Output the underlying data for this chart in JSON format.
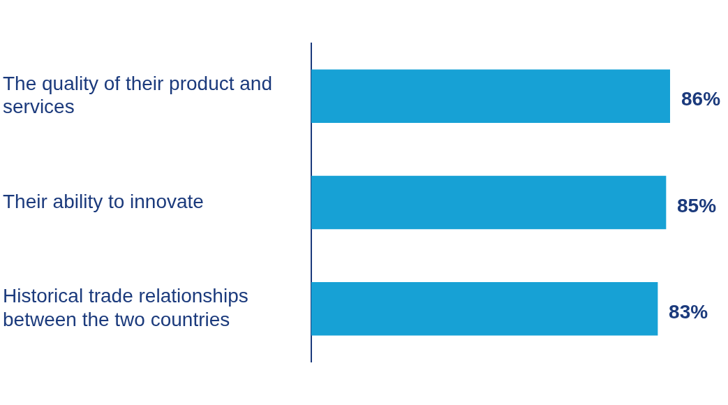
{
  "chart_data": {
    "type": "bar",
    "orientation": "horizontal",
    "categories": [
      "The quality of their product and services",
      "Their ability to innovate",
      "Historical trade relationships between the two countries"
    ],
    "values": [
      86,
      85,
      83
    ],
    "color": "#17a1d5",
    "value_labels": [
      "86%",
      "85%",
      "83%"
    ],
    "grid": false,
    "legend": false,
    "tick_labels": "y"
  }
}
